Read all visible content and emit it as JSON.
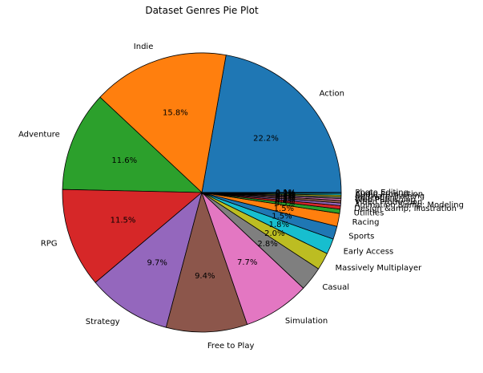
{
  "chart_data": {
    "type": "pie",
    "title": "Dataset Genres Pie Plot",
    "start_angle_deg": 0,
    "direction": "counterclockwise",
    "label_format": "percent_1dp",
    "slices": [
      {
        "label": "Action",
        "value": 22.2,
        "color": "#1f77b4"
      },
      {
        "label": "Indie",
        "value": 15.8,
        "color": "#ff7f0e"
      },
      {
        "label": "Adventure",
        "value": 11.6,
        "color": "#2ca02c"
      },
      {
        "label": "RPG",
        "value": 11.5,
        "color": "#d62728"
      },
      {
        "label": "Strategy",
        "value": 9.7,
        "color": "#9467bd"
      },
      {
        "label": "Free to Play",
        "value": 9.4,
        "color": "#8c564b"
      },
      {
        "label": "Simulation",
        "value": 7.7,
        "color": "#e377c2"
      },
      {
        "label": "Casual",
        "value": 2.8,
        "color": "#7f7f7f"
      },
      {
        "label": "Massively Multiplayer",
        "value": 2.0,
        "color": "#bcbd22"
      },
      {
        "label": "Early Access",
        "value": 1.8,
        "color": "#17becf"
      },
      {
        "label": "Sports",
        "value": 1.5,
        "color": "#1f77b4"
      },
      {
        "label": "Racing",
        "value": 1.5,
        "color": "#ff7f0e"
      },
      {
        "label": "Utilities",
        "value": 0.5,
        "color": "#2ca02c"
      },
      {
        "label": "Design &amp; Illustration",
        "value": 0.4,
        "color": "#d62728"
      },
      {
        "label": "Animation &amp; Modeling",
        "value": 0.3,
        "color": "#9467bd"
      },
      {
        "label": "Video Production",
        "value": 0.3,
        "color": "#8c564b"
      },
      {
        "label": "Web Publishing",
        "value": 0.2,
        "color": "#e377c2"
      },
      {
        "label": "Education",
        "value": 0.2,
        "color": "#7f7f7f"
      },
      {
        "label": "Software Training",
        "value": 0.2,
        "color": "#bcbd22"
      },
      {
        "label": "Audio Production",
        "value": 0.2,
        "color": "#17becf"
      },
      {
        "label": "Photo Editing",
        "value": 0.1,
        "color": "#1f77b4"
      }
    ]
  }
}
